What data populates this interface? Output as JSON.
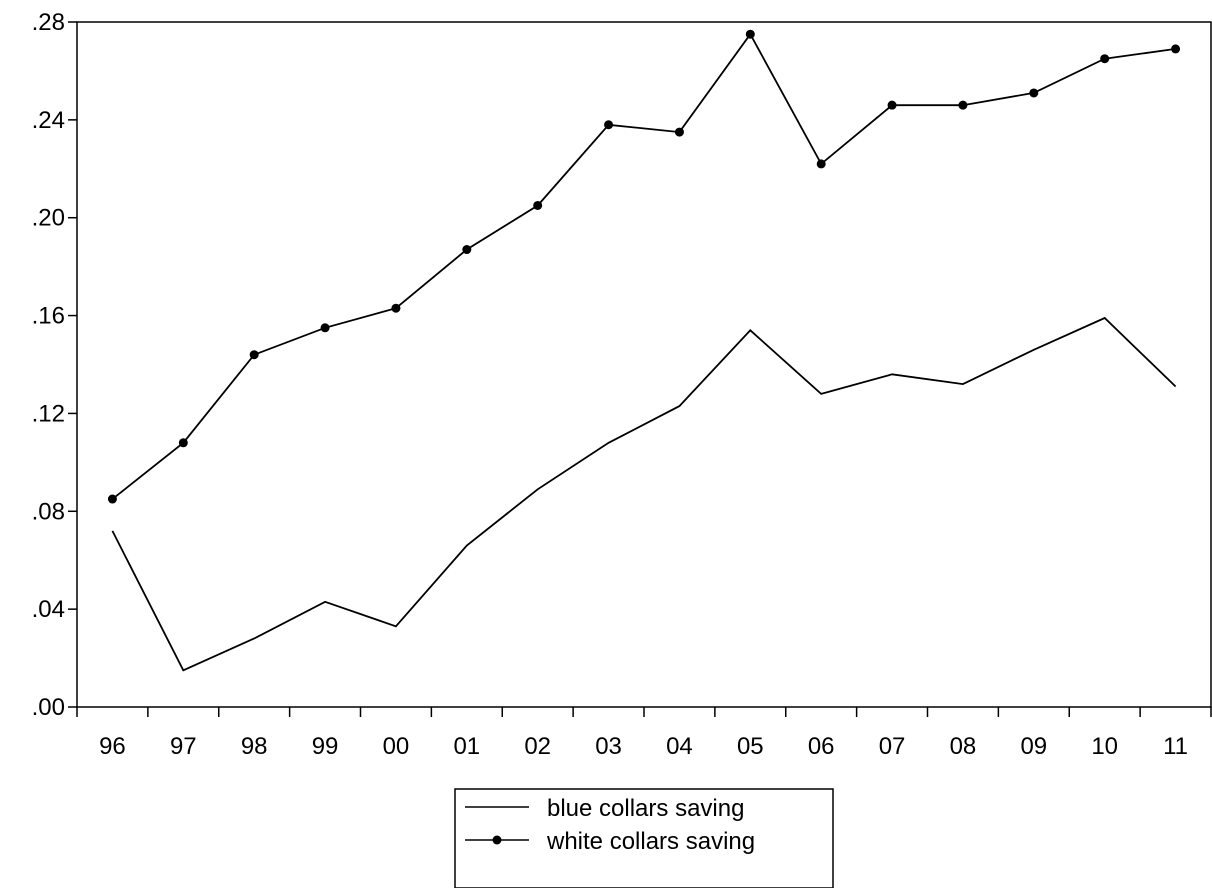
{
  "chart_data": {
    "type": "line",
    "title": "",
    "xlabel": "",
    "ylabel": "",
    "categories": [
      "96",
      "97",
      "98",
      "99",
      "00",
      "01",
      "02",
      "03",
      "04",
      "05",
      "06",
      "07",
      "08",
      "09",
      "10",
      "11"
    ],
    "y_ticks": [
      ".00",
      ".04",
      ".08",
      ".12",
      ".16",
      ".20",
      ".24",
      ".28"
    ],
    "ylim": [
      0,
      0.28
    ],
    "grid": false,
    "legend_placement": "bottom-center",
    "series": [
      {
        "name": "blue collars  saving",
        "marker": "none",
        "color": "#000000",
        "values": [
          0.072,
          0.015,
          0.028,
          0.043,
          0.033,
          0.066,
          0.089,
          0.108,
          0.123,
          0.154,
          0.128,
          0.136,
          0.132,
          0.146,
          0.159,
          0.131
        ]
      },
      {
        "name": "white collars saving",
        "marker": "circle",
        "color": "#000000",
        "values": [
          0.085,
          0.108,
          0.144,
          0.155,
          0.163,
          0.187,
          0.205,
          0.238,
          0.235,
          0.275,
          0.222,
          0.246,
          0.246,
          0.251,
          0.265,
          0.269
        ]
      }
    ]
  }
}
